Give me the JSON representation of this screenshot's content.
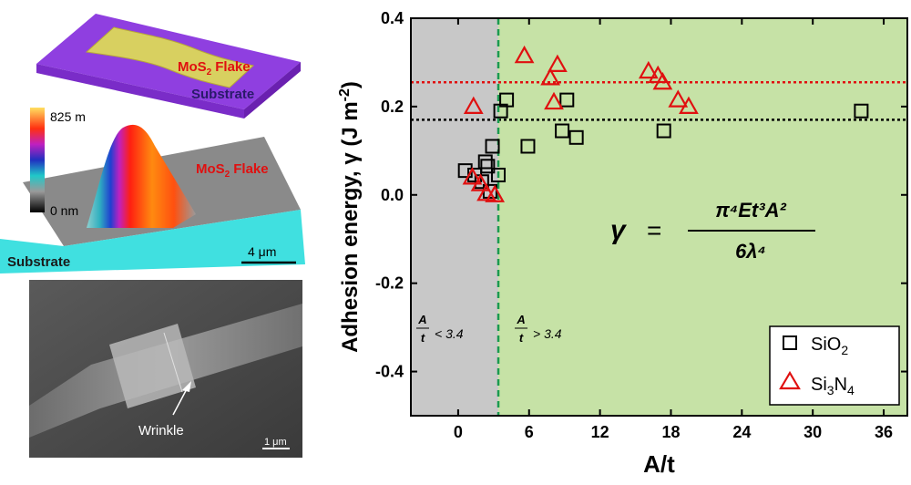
{
  "schematic": {
    "flake_label": "MoS",
    "flake_sub": "2",
    "flake_word": "Flake",
    "substrate_label": "Substrate"
  },
  "afm": {
    "scale_max": "825 m",
    "scale_min": "0 nm",
    "flake_label": "MoS",
    "flake_sub": "2",
    "flake_word": "Flake",
    "substrate_label": "Substrate",
    "scalebar": "4 μm"
  },
  "sem": {
    "wrinkle_label": "Wrinkle",
    "scalebar": "1 μm"
  },
  "chart_data": {
    "type": "scatter",
    "xlabel": "A/t",
    "ylabel": "Adhesion energy, γ (J m",
    "ylabel_sup": "-2",
    "ylabel_end": ")",
    "xlim": [
      -4,
      38
    ],
    "ylim": [
      -0.5,
      0.4
    ],
    "xticks": [
      0,
      6,
      12,
      18,
      24,
      30,
      36
    ],
    "yticks": [
      -0.4,
      -0.2,
      0.0,
      0.2,
      0.4
    ],
    "ytick_labels": [
      "-0.4",
      "-0.2",
      "0.0",
      "0.2",
      "0.4"
    ],
    "threshold_x": 3.4,
    "region_colors": {
      "left": "#c8c8c8",
      "right": "#c6e2a6"
    },
    "threshold_color": "#1a9a50",
    "left_region_label": {
      "num": "A",
      "den": "t",
      "rel": "< 3.4"
    },
    "right_region_label": {
      "num": "A",
      "den": "t",
      "rel": "> 3.4"
    },
    "hlines": [
      {
        "y": 0.255,
        "color": "#e01010"
      },
      {
        "y": 0.17,
        "color": "#000000"
      }
    ],
    "formula": {
      "lhs": "γ",
      "eq": "=",
      "numerator": "π⁴Et³A²",
      "denominator": "6λ⁴"
    },
    "series": [
      {
        "name": "SiO2",
        "legend_main": "SiO",
        "legend_sub": "2",
        "legend_tail": "",
        "marker": "square",
        "color": "#000000",
        "points": [
          [
            0.6,
            0.055
          ],
          [
            1.4,
            0.045
          ],
          [
            2.0,
            0.03
          ],
          [
            2.3,
            0.075
          ],
          [
            2.5,
            0.065
          ],
          [
            2.7,
            0.008
          ],
          [
            2.9,
            0.11
          ],
          [
            3.4,
            0.045
          ],
          [
            3.6,
            0.19
          ],
          [
            4.1,
            0.215
          ],
          [
            5.9,
            0.11
          ],
          [
            8.8,
            0.145
          ],
          [
            9.2,
            0.215
          ],
          [
            10.0,
            0.13
          ],
          [
            17.4,
            0.145
          ],
          [
            34.1,
            0.19
          ]
        ]
      },
      {
        "name": "Si3N4",
        "legend_main": "Si",
        "legend_sub": "3",
        "legend_tail": "N",
        "legend_sub2": "4",
        "marker": "triangle",
        "color": "#e01010",
        "points": [
          [
            1.3,
            0.2
          ],
          [
            1.2,
            0.04
          ],
          [
            1.9,
            0.025
          ],
          [
            2.4,
            0.003
          ],
          [
            3.1,
            0.0
          ],
          [
            5.6,
            0.315
          ],
          [
            7.8,
            0.265
          ],
          [
            8.4,
            0.295
          ],
          [
            8.1,
            0.21
          ],
          [
            16.1,
            0.28
          ],
          [
            16.9,
            0.27
          ],
          [
            17.3,
            0.255
          ],
          [
            18.6,
            0.215
          ],
          [
            19.5,
            0.2
          ]
        ]
      }
    ]
  }
}
